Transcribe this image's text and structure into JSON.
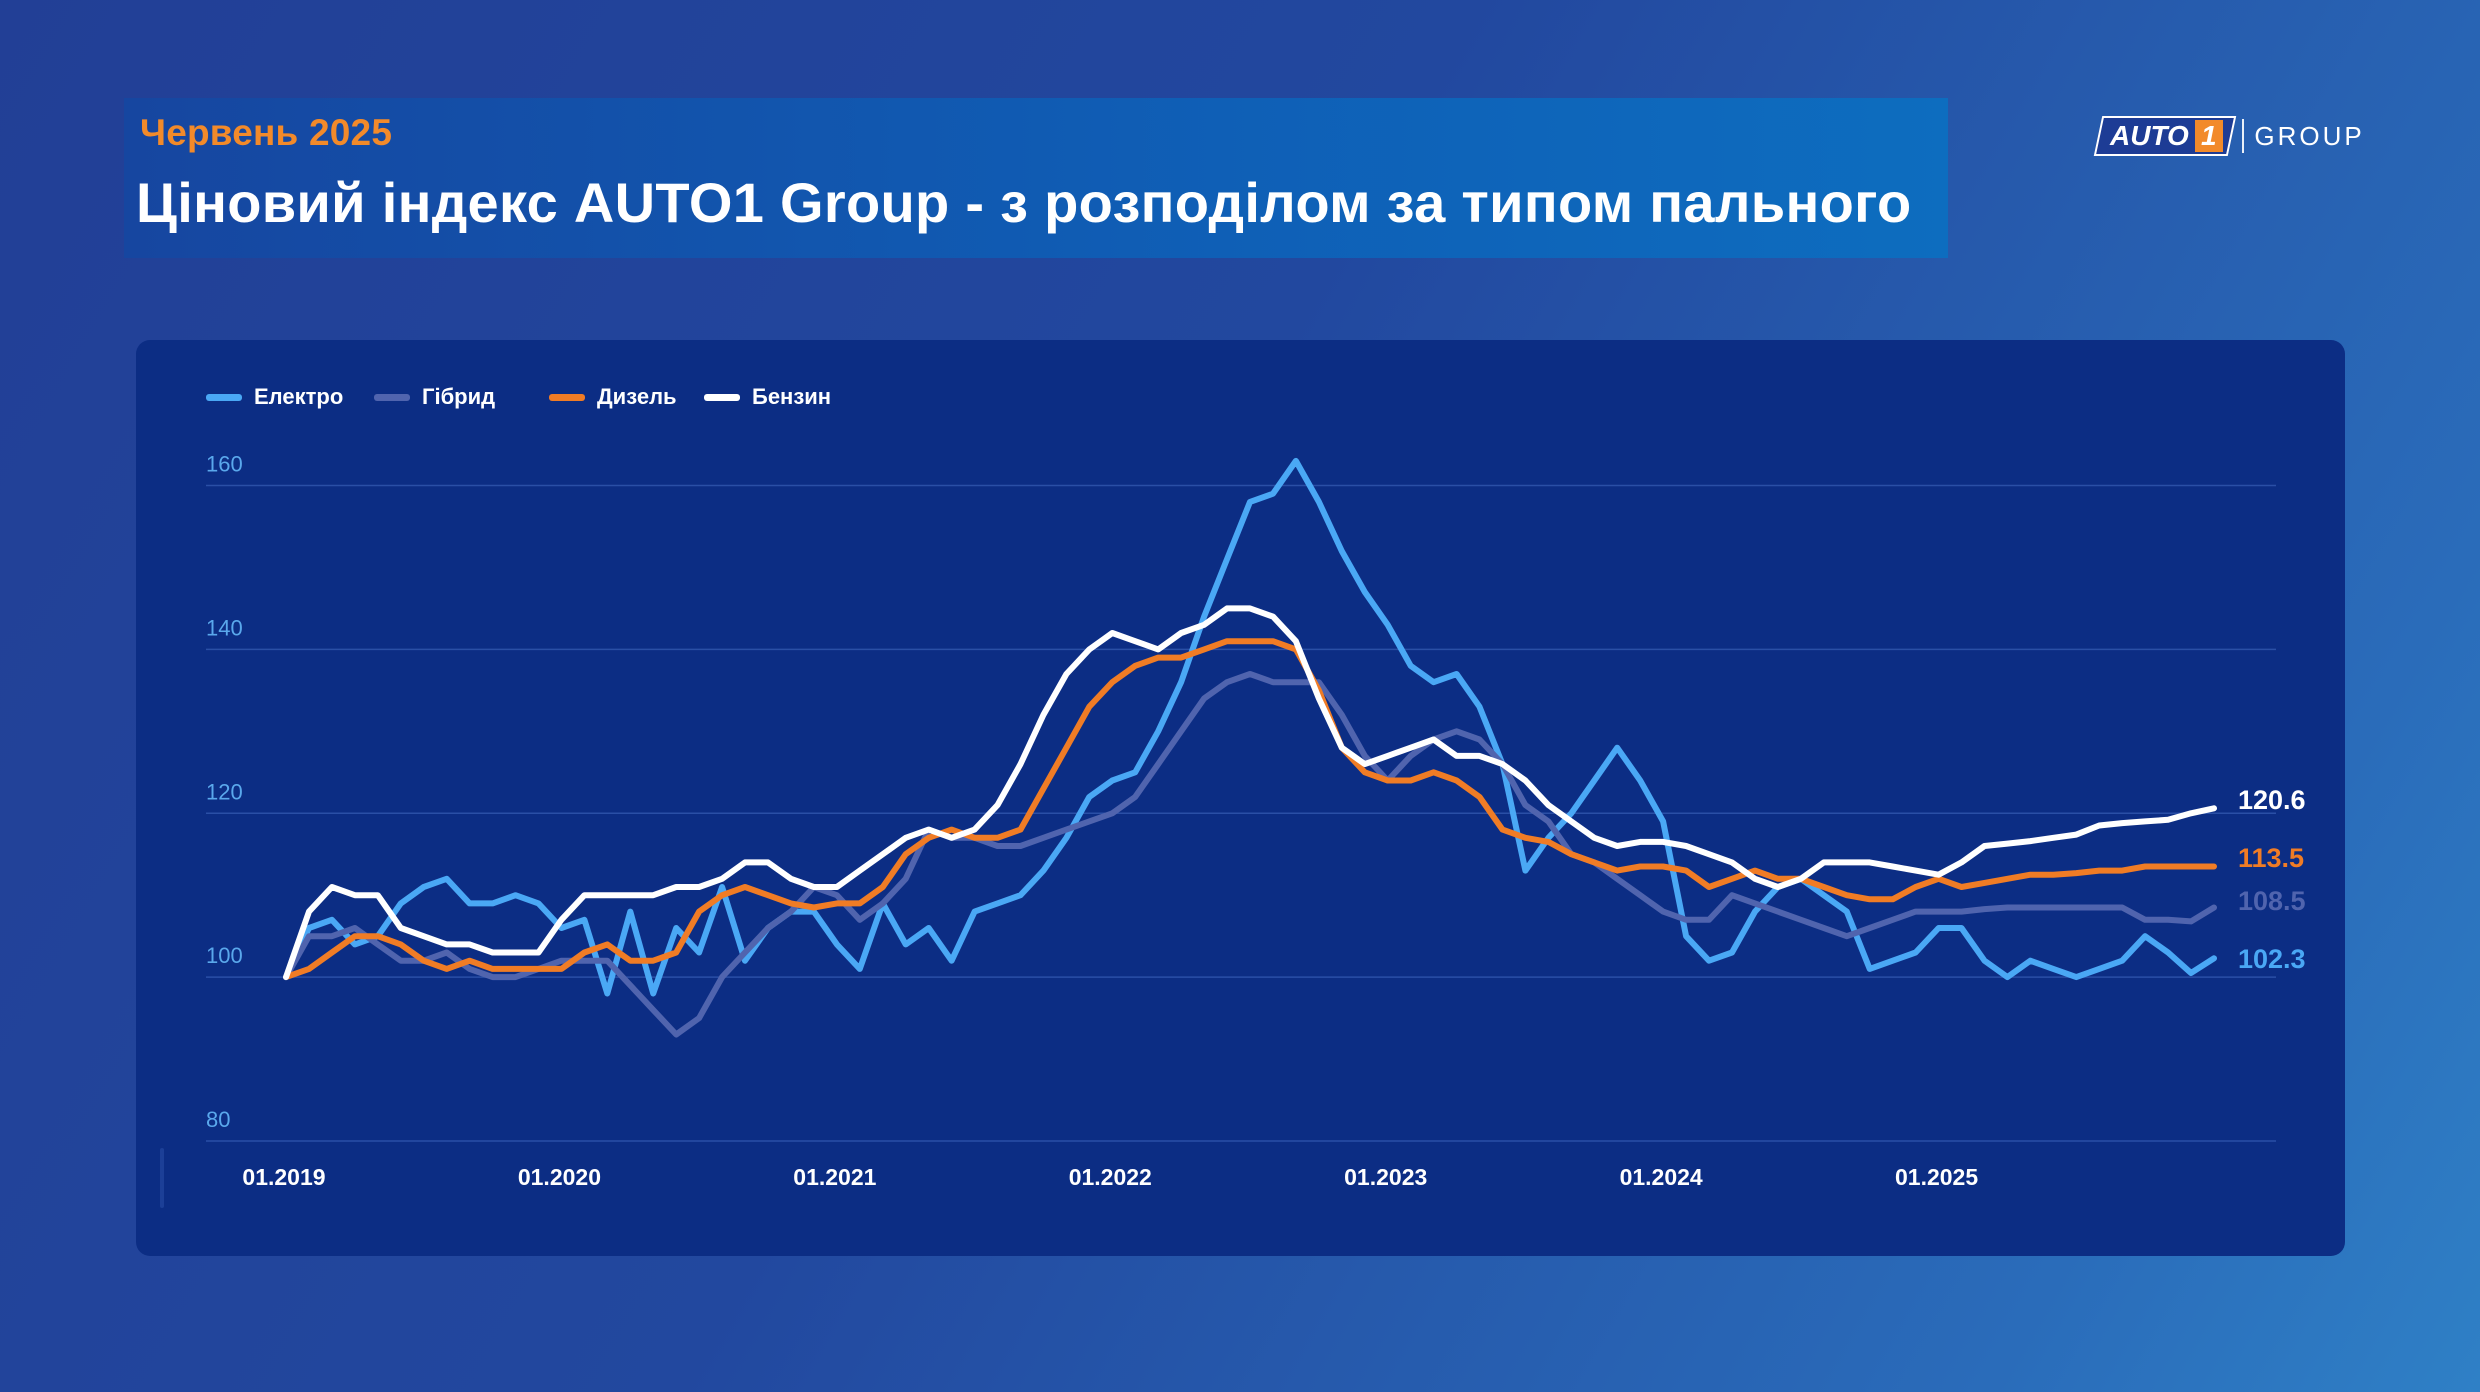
{
  "header": {
    "subtitle": "Червень 2025",
    "title": "Ціновий індекс AUTO1 Group - з розподілом за типом пального"
  },
  "logo": {
    "word": "AUTO",
    "number": "1",
    "group": "GROUP"
  },
  "colors": {
    "background": "#223f96",
    "panel": "#0c2d84",
    "accent": "#f28a2a",
    "electro": "#4aa8f5",
    "hybrid": "#5064ae",
    "diesel": "#f07c25",
    "petrol": "#ffffff"
  },
  "chart_data": {
    "type": "line",
    "title": "Ціновий індекс AUTO1 Group - з розподілом за типом пального",
    "subtitle": "Червень 2025",
    "xlabel": "",
    "ylabel": "",
    "x_start": "01.2019",
    "x_end": "06.2025",
    "x_ticks": [
      "01.2019",
      "01.2020",
      "01.2021",
      "01.2022",
      "01.2023",
      "01.2024",
      "01.2025"
    ],
    "y_ticks": [
      80,
      100,
      120,
      140,
      160
    ],
    "ylim": [
      80,
      164
    ],
    "grid": true,
    "legend_position": "top-left",
    "series": [
      {
        "name": "Електро",
        "color": "#4aa8f5",
        "last_label": "102.3",
        "values": [
          100,
          106,
          107,
          104,
          105,
          109,
          111,
          112,
          109,
          109,
          110,
          109,
          106,
          107,
          98,
          108,
          98,
          106,
          103,
          111,
          102,
          106,
          108,
          108,
          104,
          101,
          109,
          104,
          106,
          102,
          108,
          109,
          110,
          113,
          117,
          122,
          124,
          125,
          130,
          136,
          144,
          151,
          158,
          159,
          163,
          158,
          152,
          147,
          143,
          138,
          136,
          137,
          133,
          126,
          113,
          117,
          120,
          124,
          128,
          124,
          119,
          105,
          102,
          103,
          108,
          111,
          112,
          110,
          108,
          101,
          102,
          103,
          106,
          106,
          102,
          100,
          102,
          101,
          100,
          101,
          102,
          105,
          103,
          100.5,
          102.3
        ]
      },
      {
        "name": "Гібрид",
        "color": "#5064ae",
        "last_label": "108.5",
        "values": [
          100,
          105,
          105,
          106,
          104,
          102,
          102,
          103,
          101,
          100,
          100,
          101,
          102,
          102,
          102,
          99,
          96,
          93,
          95,
          100,
          103,
          106,
          108,
          111,
          110,
          107,
          109,
          112,
          118,
          117,
          117,
          116,
          116,
          117,
          118,
          119,
          120,
          122,
          126,
          130,
          134,
          136,
          137,
          136,
          136,
          136,
          132,
          127,
          124,
          127,
          129,
          130,
          129,
          126,
          121,
          119,
          115,
          114,
          112,
          110,
          108,
          107,
          107,
          110,
          109,
          108,
          107,
          106,
          105,
          106,
          107,
          108,
          108,
          108,
          108.3,
          108.5,
          108.5,
          108.5,
          108.5,
          108.5,
          108.5,
          107,
          107,
          106.8,
          108.5
        ]
      },
      {
        "name": "Дизель",
        "color": "#f07c25",
        "last_label": "113.5",
        "values": [
          100,
          101,
          103,
          105,
          105,
          104,
          102,
          101,
          102,
          101,
          101,
          101,
          101,
          103,
          104,
          102,
          102,
          103,
          108,
          110,
          111,
          110,
          109,
          108.5,
          109,
          109,
          111,
          115,
          117,
          118,
          117,
          117,
          118,
          123,
          128,
          133,
          136,
          138,
          139,
          139,
          140,
          141,
          141,
          141,
          140,
          135,
          128,
          125,
          124,
          124,
          125,
          124,
          122,
          118,
          117,
          116.5,
          115,
          114,
          113,
          113.5,
          113.5,
          113,
          111,
          112,
          113,
          112,
          112,
          111,
          110,
          109.5,
          109.5,
          111,
          112,
          111,
          111.5,
          112,
          112.5,
          112.5,
          112.7,
          113,
          113,
          113.5,
          113.5,
          113.5,
          113.5
        ]
      },
      {
        "name": "Бензин",
        "color": "#ffffff",
        "last_label": "120.6",
        "values": [
          100,
          108,
          111,
          110,
          110,
          106,
          105,
          104,
          104,
          103,
          103,
          103,
          107,
          110,
          110,
          110,
          110,
          111,
          111,
          112,
          114,
          114,
          112,
          111,
          111,
          113,
          115,
          117,
          118,
          117,
          118,
          121,
          126,
          132,
          137,
          140,
          142,
          141,
          140,
          142,
          143,
          145,
          145,
          144,
          141,
          134,
          128,
          126,
          127,
          128,
          129,
          127,
          127,
          126,
          124,
          121,
          119,
          117,
          116,
          116.5,
          116.5,
          116,
          115,
          114,
          112,
          111,
          112,
          114,
          114,
          114,
          113.5,
          113,
          112.5,
          114,
          116,
          116.3,
          116.6,
          117,
          117.4,
          118.5,
          118.8,
          119,
          119.2,
          120,
          120.6
        ]
      }
    ]
  }
}
